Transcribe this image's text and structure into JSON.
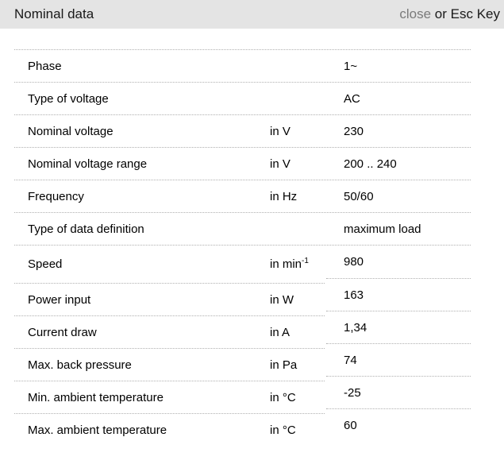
{
  "header": {
    "title": "Nominal data",
    "close_label": "close",
    "close_suffix": " or Esc Key"
  },
  "table": {
    "rows": [
      {
        "label": "Phase",
        "unit": "",
        "value": "1~"
      },
      {
        "label": "Type of voltage",
        "unit": "",
        "value": "AC"
      },
      {
        "label": "Nominal voltage",
        "unit": "in V",
        "value": "230"
      },
      {
        "label": "Nominal voltage range",
        "unit": "in V",
        "value": "200 .. 240"
      },
      {
        "label": "Frequency",
        "unit": "in Hz",
        "value": "50/60"
      },
      {
        "label": "Type of data definition",
        "unit": "",
        "value": "maximum load"
      },
      {
        "label": "Speed",
        "unit": "in min",
        "unit_sup": "-1",
        "value": "980"
      },
      {
        "label": "Power input",
        "unit": "in W",
        "value": "163"
      },
      {
        "label": "Current draw",
        "unit": "in A",
        "value": "1,34"
      },
      {
        "label": "Max. back pressure",
        "unit": "in Pa",
        "value": "74"
      },
      {
        "label": "Min. ambient temperature",
        "unit": "in °C",
        "value": "-25"
      },
      {
        "label": "Max. ambient temperature",
        "unit": "in °C",
        "value": "60"
      }
    ]
  },
  "colors": {
    "header_bg": "#e4e4e4",
    "close_gray": "#7a7a7a",
    "text": "#1a1a1a",
    "border_dotted": "#b0b0b0"
  }
}
